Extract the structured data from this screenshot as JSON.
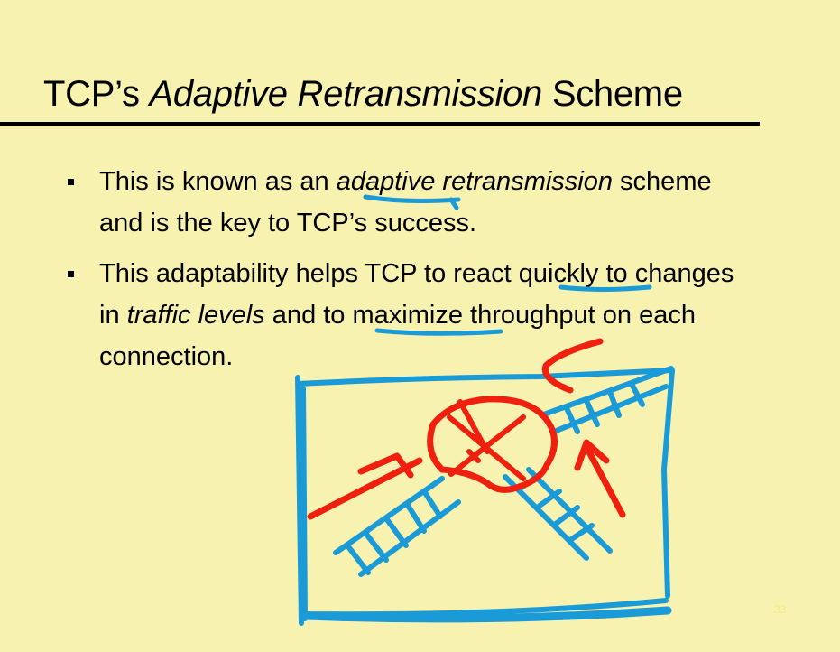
{
  "slide": {
    "title": {
      "pre": "TCP’s ",
      "em": "Adaptive Retransmission",
      "post": " Scheme"
    },
    "bullets": [
      {
        "l1_a": "This is known as an ",
        "l1_em": "adaptive retransmission",
        "l1_b": " scheme",
        "l2": "and is the key to TCP’s success."
      },
      {
        "l1_a": "This adaptability helps TCP to react ",
        "l1_u": "quickly",
        "l1_b": " to changes",
        "l2_a": "in ",
        "l2_em": "traffic levels",
        "l2_b": " and to ",
        "l2_u": "maximize",
        "l2_c": " throughput on each",
        "l3": "connection."
      }
    ],
    "page_number": "33"
  },
  "annotations": {
    "blue_ink_color": "#1a9ad6",
    "red_ink_color": "#f0200e"
  }
}
